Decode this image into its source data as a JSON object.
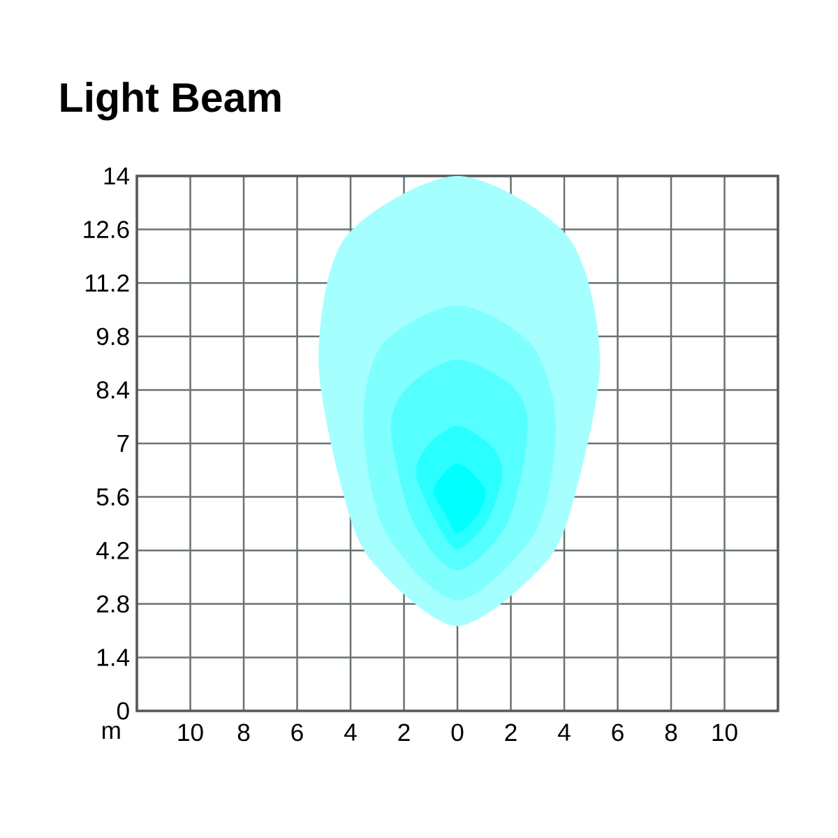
{
  "chart_data": {
    "type": "area",
    "title": "Light Beam",
    "xlabel": "m",
    "xlim": [
      -12,
      12
    ],
    "ylim": [
      0,
      14
    ],
    "grid": true,
    "xticks": [
      {
        "value": -10,
        "label": "10"
      },
      {
        "value": -8,
        "label": "8"
      },
      {
        "value": -6,
        "label": "6"
      },
      {
        "value": -4,
        "label": "4"
      },
      {
        "value": -2,
        "label": "2"
      },
      0,
      2,
      4,
      6,
      8,
      10
    ],
    "yticks": [
      0,
      1.4,
      2.8,
      4.2,
      5.6,
      7,
      8.4,
      9.8,
      11.2,
      12.6,
      14
    ],
    "series": [
      {
        "color": "#a6ffff",
        "x": [
          0,
          4.16,
          5.34,
          4.42,
          3.29,
          0,
          -3.15,
          -4.28,
          -5.2,
          -4.2
        ],
        "values": [
          14,
          12.39,
          9.22,
          5.7,
          3.87,
          2.22,
          3.87,
          5.7,
          9.22,
          12.39
        ]
      },
      {
        "color": "#80ffff",
        "x": [
          0,
          2.77,
          3.69,
          2.94,
          0,
          -2.72,
          -3.53,
          -2.82
        ],
        "values": [
          10.62,
          9.59,
          7.52,
          4.71,
          2.89,
          4.71,
          7.52,
          9.59
        ]
      },
      {
        "color": "#55ffff",
        "x": [
          0,
          2.07,
          2.63,
          1.9,
          0,
          -1.67,
          -2.49,
          -1.84
        ],
        "values": [
          9.2,
          8.49,
          7.39,
          4.96,
          3.68,
          4.96,
          7.39,
          8.49
        ]
      },
      {
        "color": "#2affff",
        "x": [
          0,
          1.29,
          1.69,
          1.11,
          0,
          -0.8,
          -1.55,
          -1.15
        ],
        "values": [
          7.46,
          6.91,
          6.18,
          4.96,
          4.23,
          4.96,
          6.18,
          6.91
        ]
      },
      {
        "color": "#00ffff",
        "x": [
          0,
          1.03,
          0.77,
          0,
          -0.45,
          -0.89
        ],
        "values": [
          6.48,
          5.81,
          5.14,
          4.65,
          5.14,
          5.81
        ]
      }
    ]
  }
}
